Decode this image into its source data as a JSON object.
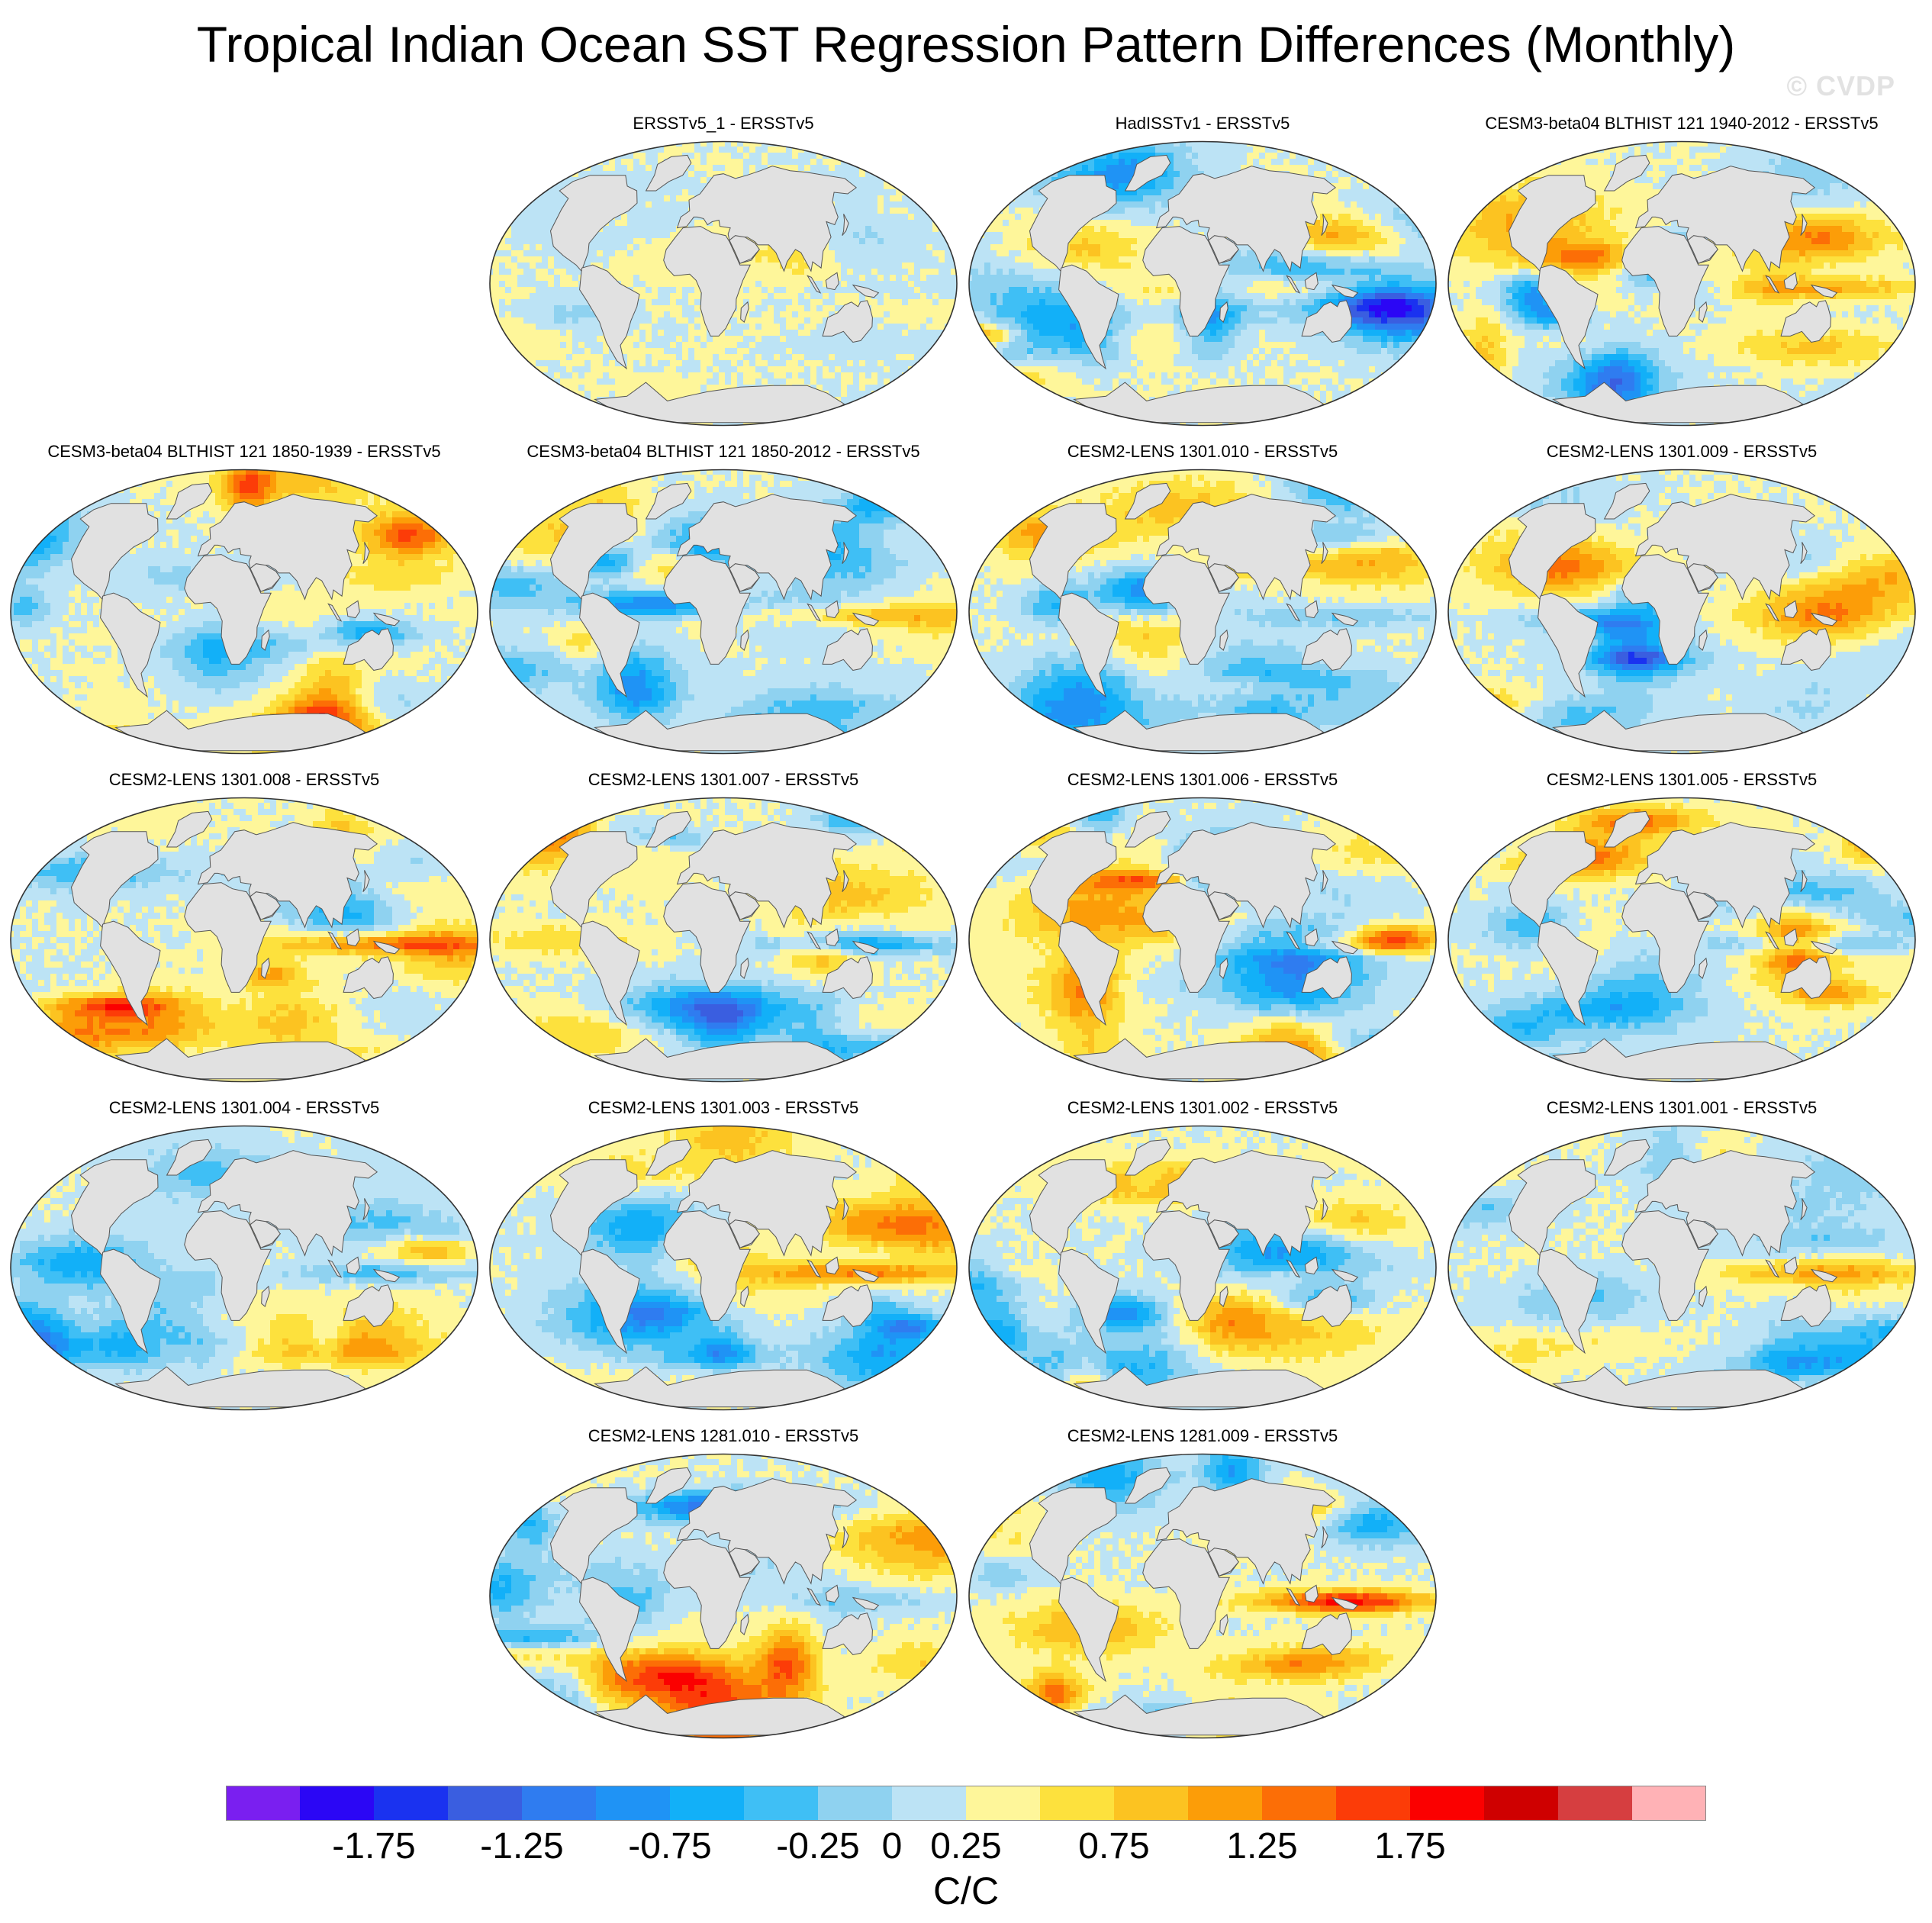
{
  "title": "Tropical Indian Ocean SST Regression Pattern Differences (Monthly)",
  "watermark": "© CVDP",
  "chart_data": {
    "type": "heatmap",
    "projection": "robinson",
    "colorbar": {
      "units": "C/C",
      "levels": [
        -2,
        -1.75,
        -1.5,
        -1.25,
        -1,
        -0.75,
        -0.5,
        -0.25,
        0,
        0.25,
        0.5,
        0.75,
        1,
        1.25,
        1.5,
        1.75,
        2
      ],
      "tick_labels": [
        "-1.75",
        "-1.25",
        "-0.75",
        "-0.25",
        "0",
        "0.25",
        "0.75",
        "1.25",
        "1.75"
      ],
      "tick_values": [
        -1.75,
        -1.25,
        -0.75,
        -0.25,
        0,
        0.25,
        0.75,
        1.25,
        1.75
      ],
      "colors": [
        "#7a1ff0",
        "#2b06f5",
        "#1a32f0",
        "#3a5ee0",
        "#2f7cf0",
        "#1f93f5",
        "#12b0f8",
        "#3fbff5",
        "#8fd2f0",
        "#bce3f5",
        "#fef69a",
        "#fde13d",
        "#fcc321",
        "#fc9d08",
        "#fc6e06",
        "#fc3c08",
        "#fb0000",
        "#cf0000",
        "#d63e40",
        "#ffb2b6"
      ]
    },
    "panels": [
      {
        "title": "ERSSTv5_1 - ERSSTv5",
        "seed": 11,
        "amp": 0.3
      },
      {
        "title": "HadISSTv1 - ERSSTv5",
        "seed": 23,
        "amp": 0.9
      },
      {
        "title": "CESM3-beta04 BLTHIST 121 1940-2012 - ERSSTv5",
        "seed": 37,
        "amp": 1.0
      },
      {
        "title": "CESM3-beta04 BLTHIST 121 1850-1939 - ERSSTv5",
        "seed": 41,
        "amp": 0.95
      },
      {
        "title": "CESM3-beta04 BLTHIST 121 1850-2012 - ERSSTv5",
        "seed": 53,
        "amp": 0.95
      },
      {
        "title": "CESM2-LENS 1301.010 - ERSSTv5",
        "seed": 61,
        "amp": 0.85
      },
      {
        "title": "CESM2-LENS 1301.009 - ERSSTv5",
        "seed": 73,
        "amp": 0.85
      },
      {
        "title": "CESM2-LENS 1301.008 - ERSSTv5",
        "seed": 83,
        "amp": 0.85
      },
      {
        "title": "CESM2-LENS 1301.007 - ERSSTv5",
        "seed": 97,
        "amp": 0.85
      },
      {
        "title": "CESM2-LENS 1301.006 - ERSSTv5",
        "seed": 101,
        "amp": 0.9
      },
      {
        "title": "CESM2-LENS 1301.005 - ERSSTv5",
        "seed": 113,
        "amp": 0.9
      },
      {
        "title": "CESM2-LENS 1301.004 - ERSSTv5",
        "seed": 127,
        "amp": 0.85
      },
      {
        "title": "CESM2-LENS 1301.003 - ERSSTv5",
        "seed": 131,
        "amp": 0.85
      },
      {
        "title": "CESM2-LENS 1301.002 - ERSSTv5",
        "seed": 139,
        "amp": 0.85
      },
      {
        "title": "CESM2-LENS 1301.001 - ERSSTv5",
        "seed": 149,
        "amp": 0.85
      },
      {
        "title": "CESM2-LENS 1281.010 - ERSSTv5",
        "seed": 157,
        "amp": 0.95
      },
      {
        "title": "CESM2-LENS 1281.009 - ERSSTv5",
        "seed": 163,
        "amp": 0.85
      }
    ]
  }
}
